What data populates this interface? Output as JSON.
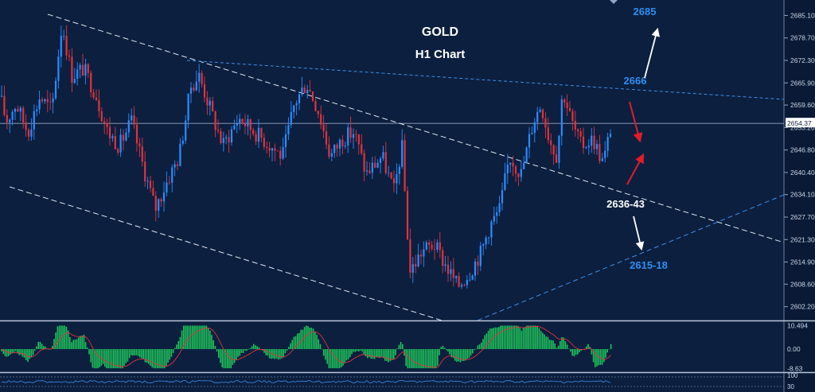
{
  "chart_data": {
    "type": "candlestick",
    "title": "GOLD",
    "subtitle": "H1 Chart",
    "timeframe": "H1",
    "price_axis": {
      "range": [
        2598,
        2690
      ],
      "ticks": [
        "2685.10",
        "2678.70",
        "2672.30",
        "2665.90",
        "2659.60",
        "2653.20",
        "2646.80",
        "2640.40",
        "2634.10",
        "2627.70",
        "2621.30",
        "2614.90",
        "2608.60",
        "2602.20"
      ],
      "tick_values": [
        2685.1,
        2678.7,
        2672.3,
        2665.9,
        2659.6,
        2653.2,
        2646.8,
        2640.4,
        2634.1,
        2627.7,
        2621.3,
        2614.9,
        2608.6,
        2602.2
      ]
    },
    "current_price": "2654.37",
    "current_price_value": 2654.37,
    "annotations": [
      {
        "id": "ann-2685",
        "label": "2685",
        "color": "#2f8ff0",
        "price": 2686.5
      },
      {
        "id": "ann-2666",
        "label": "2666",
        "color": "#2f8ff0",
        "price": 2666.5
      },
      {
        "id": "ann-2636",
        "label": "2636-43",
        "color": "#ffffff",
        "price": 2634.8
      },
      {
        "id": "ann-2615",
        "label": "2615-18",
        "color": "#2f8ff0",
        "price": 2617.0
      }
    ],
    "candles_anchor_path": [
      [
        0,
        2662
      ],
      [
        8,
        2655
      ],
      [
        20,
        2660
      ],
      [
        35,
        2652
      ],
      [
        50,
        2662
      ],
      [
        65,
        2658
      ],
      [
        78,
        2683
      ],
      [
        90,
        2668
      ],
      [
        105,
        2670
      ],
      [
        120,
        2663
      ],
      [
        135,
        2652
      ],
      [
        150,
        2648
      ],
      [
        165,
        2655
      ],
      [
        180,
        2642
      ],
      [
        195,
        2630
      ],
      [
        210,
        2638
      ],
      [
        225,
        2645
      ],
      [
        240,
        2665
      ],
      [
        250,
        2668
      ],
      [
        262,
        2660
      ],
      [
        280,
        2648
      ],
      [
        300,
        2656
      ],
      [
        320,
        2652
      ],
      [
        340,
        2648
      ],
      [
        355,
        2645
      ],
      [
        370,
        2660
      ],
      [
        385,
        2666
      ],
      [
        400,
        2658
      ],
      [
        415,
        2645
      ],
      [
        430,
        2650
      ],
      [
        445,
        2652
      ],
      [
        460,
        2640
      ],
      [
        480,
        2645
      ],
      [
        495,
        2635
      ],
      [
        505,
        2648
      ],
      [
        515,
        2612
      ],
      [
        530,
        2618
      ],
      [
        545,
        2620
      ],
      [
        560,
        2614
      ],
      [
        575,
        2608
      ],
      [
        590,
        2612
      ],
      [
        605,
        2618
      ],
      [
        615,
        2625
      ],
      [
        628,
        2630
      ],
      [
        640,
        2645
      ],
      [
        655,
        2640
      ],
      [
        670,
        2655
      ],
      [
        680,
        2660
      ],
      [
        690,
        2650
      ],
      [
        700,
        2645
      ],
      [
        707,
        2664
      ],
      [
        718,
        2655
      ],
      [
        730,
        2648
      ],
      [
        745,
        2650
      ],
      [
        758,
        2643
      ],
      [
        768,
        2654
      ]
    ],
    "macd": {
      "label_top": "10.494",
      "label_zero": "0.00",
      "label_bottom": "-8.63",
      "range": [
        -9.5,
        12
      ]
    },
    "rsi": {
      "label_top": "100",
      "label_bottom": "30"
    }
  }
}
